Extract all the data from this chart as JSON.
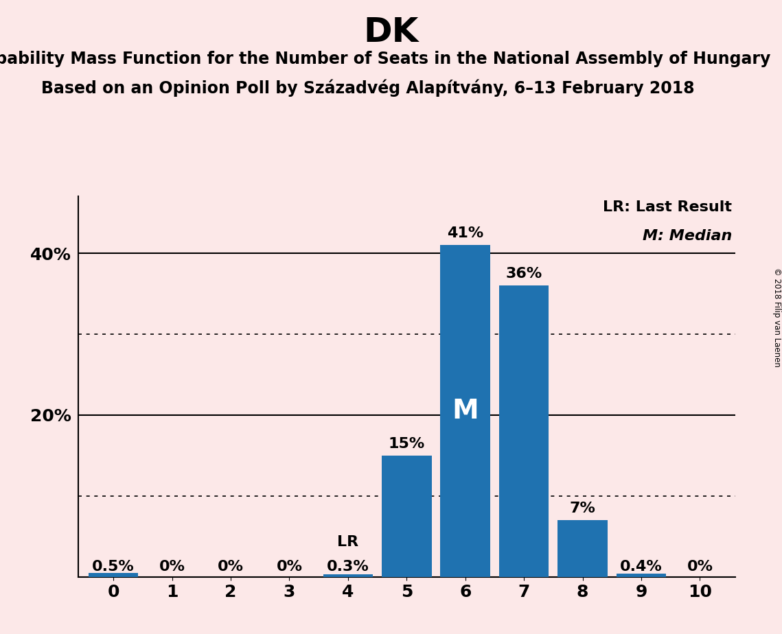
{
  "title": "DK",
  "subtitle1": "Probability Mass Function for the Number of Seats in the National Assembly of Hungary",
  "subtitle2": "Based on an Opinion Poll by Századvég Alapítvány, 6–13 February 2018",
  "categories": [
    0,
    1,
    2,
    3,
    4,
    5,
    6,
    7,
    8,
    9,
    10
  ],
  "values": [
    0.5,
    0.0,
    0.0,
    0.0,
    0.3,
    15.0,
    41.0,
    36.0,
    7.0,
    0.4,
    0.0
  ],
  "bar_color": "#1F72B0",
  "background_color": "#fce8e8",
  "bar_labels": [
    "0.5%",
    "0%",
    "0%",
    "0%",
    "0.3%",
    "15%",
    "41%",
    "36%",
    "7%",
    "0.4%",
    "0%"
  ],
  "median_bar": 6,
  "lr_bar": 4,
  "yticks": [
    0,
    20,
    40
  ],
  "ytick_labels": [
    "",
    "20%",
    "40%"
  ],
  "legend_lr": "LR: Last Result",
  "legend_m": "M: Median",
  "copyright": "© 2018 Filip van Laenen",
  "title_fontsize": 36,
  "subtitle_fontsize": 17,
  "bar_label_fontsize": 16,
  "axis_label_fontsize": 18,
  "legend_fontsize": 16,
  "dotted_lines": [
    10,
    30
  ],
  "solid_lines": [
    20,
    40
  ],
  "ylim": [
    0,
    47
  ]
}
